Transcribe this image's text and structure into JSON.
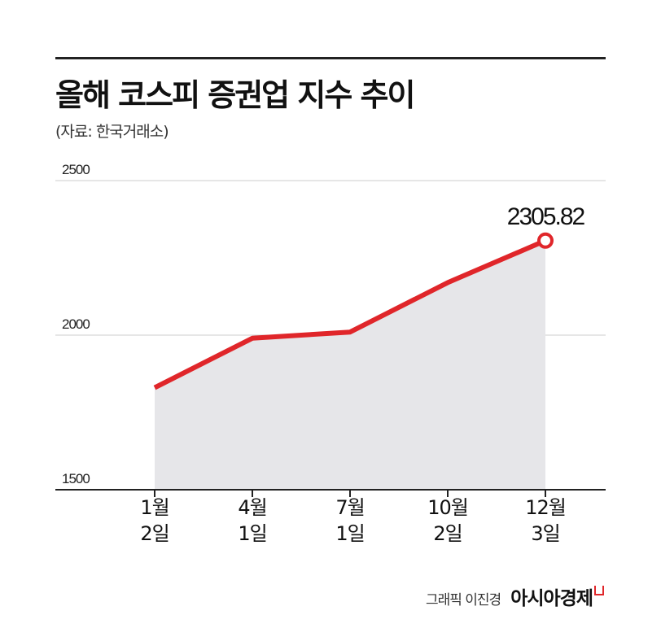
{
  "header": {
    "title": "올해 코스피 증권업 지수 추이",
    "source": "(자료: 한국거래소)"
  },
  "credit": {
    "graphic": "그래픽 이진경",
    "brand": "아시아경제"
  },
  "colors": {
    "line": "#e0262a",
    "area": "#e6e6e9",
    "grid": "#cccccc",
    "axis": "#222222"
  },
  "chart_data": {
    "type": "area",
    "categories": [
      [
        "1월",
        "2일"
      ],
      [
        "4월",
        "1일"
      ],
      [
        "7월",
        "1일"
      ],
      [
        "10월",
        "2일"
      ],
      [
        "12월",
        "3일"
      ]
    ],
    "series": [
      {
        "values": [
          1830,
          1990,
          2010,
          2170,
          2305.82
        ]
      }
    ],
    "ylim": [
      1500,
      2500
    ],
    "yticks": [
      "1500",
      "2000",
      "2500"
    ],
    "grid": true,
    "annotations": [
      {
        "label": "2305.82",
        "index": 4
      }
    ]
  }
}
